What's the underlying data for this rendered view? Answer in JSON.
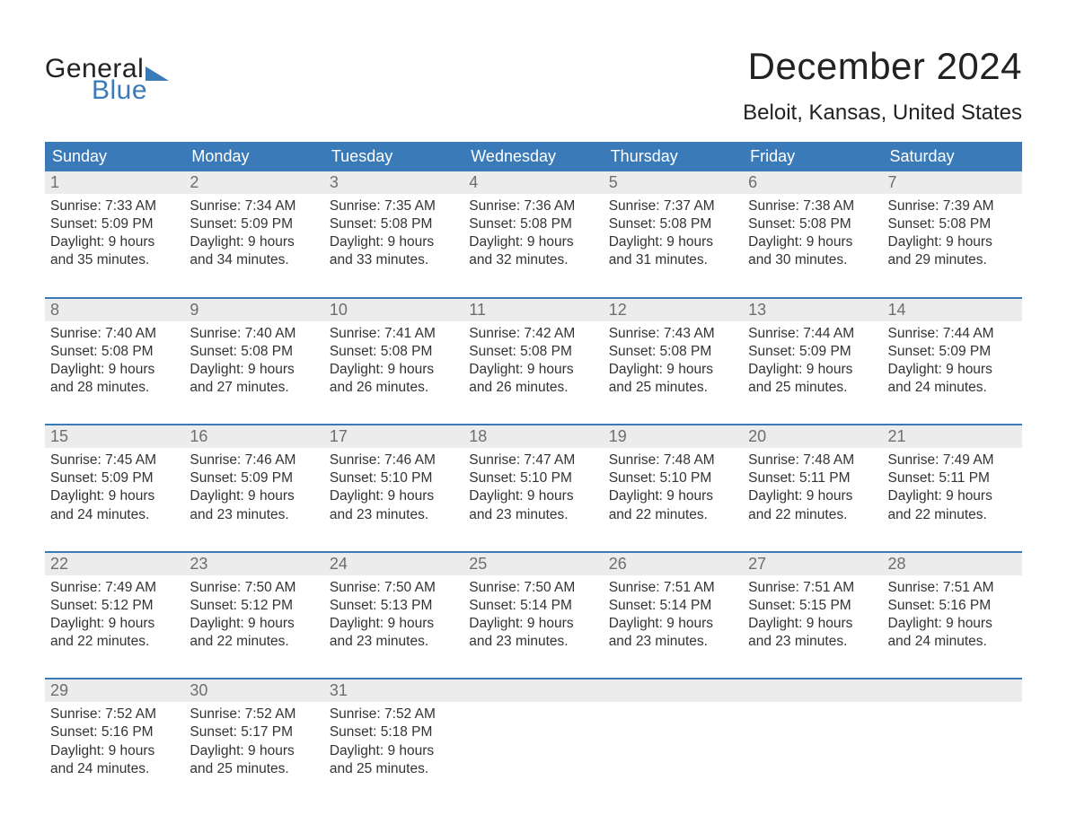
{
  "logo": {
    "text1": "General",
    "text2": "Blue"
  },
  "title": "December 2024",
  "location": "Beloit, Kansas, United States",
  "colors": {
    "brand": "#3b7ab8",
    "daynum_bg": "#ececec",
    "daynum_fg": "#6e6e6e",
    "text": "#333333",
    "background": "#ffffff"
  },
  "typography": {
    "title_fontsize": 42,
    "location_fontsize": 24,
    "dow_fontsize": 18,
    "daynum_fontsize": 18,
    "body_fontsize": 15.5
  },
  "days_of_week": [
    "Sunday",
    "Monday",
    "Tuesday",
    "Wednesday",
    "Thursday",
    "Friday",
    "Saturday"
  ],
  "weeks": [
    [
      {
        "day": "1",
        "sunrise": "Sunrise: 7:33 AM",
        "sunset": "Sunset: 5:09 PM",
        "d1": "Daylight: 9 hours",
        "d2": "and 35 minutes."
      },
      {
        "day": "2",
        "sunrise": "Sunrise: 7:34 AM",
        "sunset": "Sunset: 5:09 PM",
        "d1": "Daylight: 9 hours",
        "d2": "and 34 minutes."
      },
      {
        "day": "3",
        "sunrise": "Sunrise: 7:35 AM",
        "sunset": "Sunset: 5:08 PM",
        "d1": "Daylight: 9 hours",
        "d2": "and 33 minutes."
      },
      {
        "day": "4",
        "sunrise": "Sunrise: 7:36 AM",
        "sunset": "Sunset: 5:08 PM",
        "d1": "Daylight: 9 hours",
        "d2": "and 32 minutes."
      },
      {
        "day": "5",
        "sunrise": "Sunrise: 7:37 AM",
        "sunset": "Sunset: 5:08 PM",
        "d1": "Daylight: 9 hours",
        "d2": "and 31 minutes."
      },
      {
        "day": "6",
        "sunrise": "Sunrise: 7:38 AM",
        "sunset": "Sunset: 5:08 PM",
        "d1": "Daylight: 9 hours",
        "d2": "and 30 minutes."
      },
      {
        "day": "7",
        "sunrise": "Sunrise: 7:39 AM",
        "sunset": "Sunset: 5:08 PM",
        "d1": "Daylight: 9 hours",
        "d2": "and 29 minutes."
      }
    ],
    [
      {
        "day": "8",
        "sunrise": "Sunrise: 7:40 AM",
        "sunset": "Sunset: 5:08 PM",
        "d1": "Daylight: 9 hours",
        "d2": "and 28 minutes."
      },
      {
        "day": "9",
        "sunrise": "Sunrise: 7:40 AM",
        "sunset": "Sunset: 5:08 PM",
        "d1": "Daylight: 9 hours",
        "d2": "and 27 minutes."
      },
      {
        "day": "10",
        "sunrise": "Sunrise: 7:41 AM",
        "sunset": "Sunset: 5:08 PM",
        "d1": "Daylight: 9 hours",
        "d2": "and 26 minutes."
      },
      {
        "day": "11",
        "sunrise": "Sunrise: 7:42 AM",
        "sunset": "Sunset: 5:08 PM",
        "d1": "Daylight: 9 hours",
        "d2": "and 26 minutes."
      },
      {
        "day": "12",
        "sunrise": "Sunrise: 7:43 AM",
        "sunset": "Sunset: 5:08 PM",
        "d1": "Daylight: 9 hours",
        "d2": "and 25 minutes."
      },
      {
        "day": "13",
        "sunrise": "Sunrise: 7:44 AM",
        "sunset": "Sunset: 5:09 PM",
        "d1": "Daylight: 9 hours",
        "d2": "and 25 minutes."
      },
      {
        "day": "14",
        "sunrise": "Sunrise: 7:44 AM",
        "sunset": "Sunset: 5:09 PM",
        "d1": "Daylight: 9 hours",
        "d2": "and 24 minutes."
      }
    ],
    [
      {
        "day": "15",
        "sunrise": "Sunrise: 7:45 AM",
        "sunset": "Sunset: 5:09 PM",
        "d1": "Daylight: 9 hours",
        "d2": "and 24 minutes."
      },
      {
        "day": "16",
        "sunrise": "Sunrise: 7:46 AM",
        "sunset": "Sunset: 5:09 PM",
        "d1": "Daylight: 9 hours",
        "d2": "and 23 minutes."
      },
      {
        "day": "17",
        "sunrise": "Sunrise: 7:46 AM",
        "sunset": "Sunset: 5:10 PM",
        "d1": "Daylight: 9 hours",
        "d2": "and 23 minutes."
      },
      {
        "day": "18",
        "sunrise": "Sunrise: 7:47 AM",
        "sunset": "Sunset: 5:10 PM",
        "d1": "Daylight: 9 hours",
        "d2": "and 23 minutes."
      },
      {
        "day": "19",
        "sunrise": "Sunrise: 7:48 AM",
        "sunset": "Sunset: 5:10 PM",
        "d1": "Daylight: 9 hours",
        "d2": "and 22 minutes."
      },
      {
        "day": "20",
        "sunrise": "Sunrise: 7:48 AM",
        "sunset": "Sunset: 5:11 PM",
        "d1": "Daylight: 9 hours",
        "d2": "and 22 minutes."
      },
      {
        "day": "21",
        "sunrise": "Sunrise: 7:49 AM",
        "sunset": "Sunset: 5:11 PM",
        "d1": "Daylight: 9 hours",
        "d2": "and 22 minutes."
      }
    ],
    [
      {
        "day": "22",
        "sunrise": "Sunrise: 7:49 AM",
        "sunset": "Sunset: 5:12 PM",
        "d1": "Daylight: 9 hours",
        "d2": "and 22 minutes."
      },
      {
        "day": "23",
        "sunrise": "Sunrise: 7:50 AM",
        "sunset": "Sunset: 5:12 PM",
        "d1": "Daylight: 9 hours",
        "d2": "and 22 minutes."
      },
      {
        "day": "24",
        "sunrise": "Sunrise: 7:50 AM",
        "sunset": "Sunset: 5:13 PM",
        "d1": "Daylight: 9 hours",
        "d2": "and 23 minutes."
      },
      {
        "day": "25",
        "sunrise": "Sunrise: 7:50 AM",
        "sunset": "Sunset: 5:14 PM",
        "d1": "Daylight: 9 hours",
        "d2": "and 23 minutes."
      },
      {
        "day": "26",
        "sunrise": "Sunrise: 7:51 AM",
        "sunset": "Sunset: 5:14 PM",
        "d1": "Daylight: 9 hours",
        "d2": "and 23 minutes."
      },
      {
        "day": "27",
        "sunrise": "Sunrise: 7:51 AM",
        "sunset": "Sunset: 5:15 PM",
        "d1": "Daylight: 9 hours",
        "d2": "and 23 minutes."
      },
      {
        "day": "28",
        "sunrise": "Sunrise: 7:51 AM",
        "sunset": "Sunset: 5:16 PM",
        "d1": "Daylight: 9 hours",
        "d2": "and 24 minutes."
      }
    ],
    [
      {
        "day": "29",
        "sunrise": "Sunrise: 7:52 AM",
        "sunset": "Sunset: 5:16 PM",
        "d1": "Daylight: 9 hours",
        "d2": "and 24 minutes."
      },
      {
        "day": "30",
        "sunrise": "Sunrise: 7:52 AM",
        "sunset": "Sunset: 5:17 PM",
        "d1": "Daylight: 9 hours",
        "d2": "and 25 minutes."
      },
      {
        "day": "31",
        "sunrise": "Sunrise: 7:52 AM",
        "sunset": "Sunset: 5:18 PM",
        "d1": "Daylight: 9 hours",
        "d2": "and 25 minutes."
      },
      {
        "empty": true
      },
      {
        "empty": true
      },
      {
        "empty": true
      },
      {
        "empty": true
      }
    ]
  ]
}
